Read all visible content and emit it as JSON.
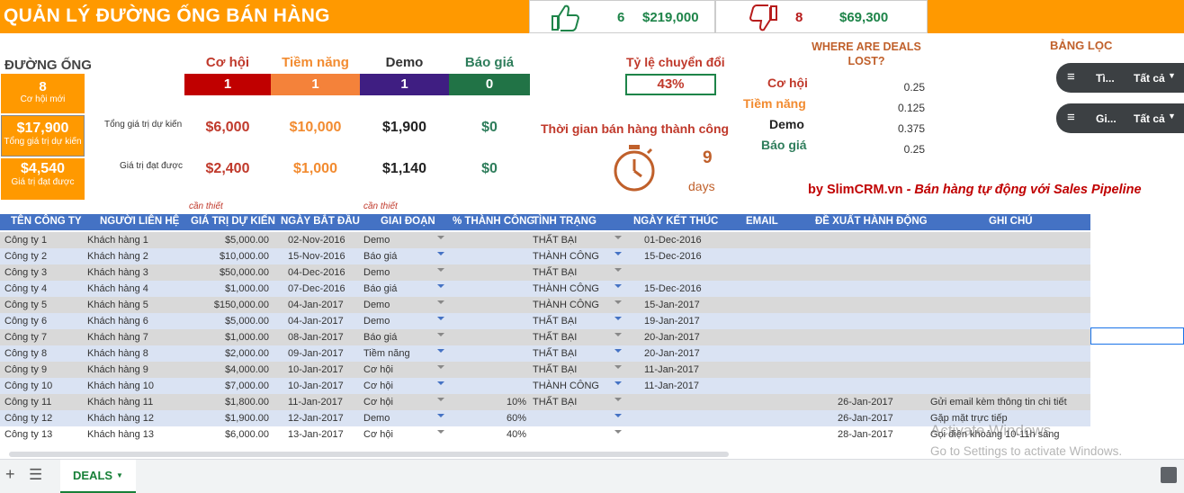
{
  "header": {
    "title": "QUẢN LÝ ĐƯỜNG ỐNG BÁN HÀNG",
    "won_count": "6",
    "won_value": "$219,000",
    "lost_count": "8",
    "lost_value": "$69,300"
  },
  "pipeline": {
    "title": "ĐƯỜNG ỐNG",
    "new_count": "8",
    "new_label": "Cơ hội mới",
    "total_value": "$17,900",
    "total_label": "Tổng giá trị dự kiến",
    "achieved_value": "$4,540",
    "achieved_label": "Giá trị đạt được"
  },
  "stages": [
    {
      "name": "Cơ hội",
      "count": "1",
      "expected": "$6,000",
      "achieved": "$2,400",
      "color": "#c00000"
    },
    {
      "name": "Tiềm năng",
      "count": "1",
      "expected": "$10,000",
      "achieved": "$1,000",
      "color": "#f4823a"
    },
    {
      "name": "Demo",
      "count": "1",
      "expected": "$1,900",
      "achieved": "$1,140",
      "color": "#3f1e82"
    },
    {
      "name": "Báo giá",
      "count": "0",
      "expected": "$0",
      "achieved": "$0",
      "color": "#217346"
    }
  ],
  "row_labels": {
    "expected": "Tổng giá trị dự kiến",
    "achieved": "Giá trị đạt được"
  },
  "conversion": {
    "label": "Tỷ lệ chuyển đổi",
    "value": "43%"
  },
  "cycle": {
    "label": "Thời gian bán hàng thành công",
    "value": "9",
    "unit": "days"
  },
  "lost": {
    "title": "WHERE ARE DEALS LOST?",
    "rows": [
      {
        "stage": "Cơ hội",
        "value": "0.25"
      },
      {
        "stage": "Tiềm năng",
        "value": "0.125"
      },
      {
        "stage": "Demo",
        "value": "0.375"
      },
      {
        "stage": "Báo giá",
        "value": "0.25"
      }
    ]
  },
  "filters": {
    "title": "BẢNG LỌC",
    "items": [
      {
        "label": "Tì...",
        "value": "Tất cả"
      },
      {
        "label": "Gi...",
        "value": "Tất cả"
      }
    ]
  },
  "brand": {
    "name": "by SlimCRM.vn",
    "tagline": "- Bán hàng tự động với Sales Pipeline"
  },
  "notes": {
    "required1": "cần thiết",
    "required2": "cần thiết"
  },
  "table": {
    "columns": [
      "TÊN CÔNG TY",
      "NGƯỜI LIÊN HỆ",
      "GIÁ TRỊ DỰ KIẾN",
      "NGÀY BẮT ĐẦU",
      "GIAI ĐOẠN",
      "% THÀNH CÔNG",
      "TÌNH TRẠNG",
      "NGÀY KẾT THÚC",
      "EMAIL",
      "ĐỀ XUẤT HÀNH ĐỘNG",
      "GHI CHÚ"
    ],
    "rows": [
      [
        "Công ty  1",
        "Khách hàng 1",
        "$5,000.00",
        "02-Nov-2016",
        "Demo",
        "",
        "THẤT BẠI",
        "01-Dec-2016",
        "",
        "",
        ""
      ],
      [
        "Công ty  2",
        "Khách hàng 2",
        "$10,000.00",
        "15-Nov-2016",
        "Báo giá",
        "",
        "THÀNH CÔNG",
        "15-Dec-2016",
        "",
        "",
        ""
      ],
      [
        "Công ty  3",
        "Khách hàng 3",
        "$50,000.00",
        "04-Dec-2016",
        "Demo",
        "",
        "THẤT BẠI",
        "",
        "",
        "",
        ""
      ],
      [
        "Công ty  4",
        "Khách hàng 4",
        "$1,000.00",
        "07-Dec-2016",
        "Báo giá",
        "",
        "THÀNH CÔNG",
        "15-Dec-2016",
        "",
        "",
        ""
      ],
      [
        "Công ty  5",
        "Khách hàng 5",
        "$150,000.00",
        "04-Jan-2017",
        "Demo",
        "",
        "THÀNH CÔNG",
        "15-Jan-2017",
        "",
        "",
        ""
      ],
      [
        "Công ty  6",
        "Khách hàng 6",
        "$5,000.00",
        "04-Jan-2017",
        "Demo",
        "",
        "THẤT BẠI",
        "19-Jan-2017",
        "",
        "",
        ""
      ],
      [
        "Công ty  7",
        "Khách hàng 7",
        "$1,000.00",
        "08-Jan-2017",
        "Báo giá",
        "",
        "THẤT BẠI",
        "20-Jan-2017",
        "",
        "",
        ""
      ],
      [
        "Công ty  8",
        "Khách hàng 8",
        "$2,000.00",
        "09-Jan-2017",
        "Tiềm năng",
        "",
        "THẤT BẠI",
        "20-Jan-2017",
        "",
        "",
        ""
      ],
      [
        "Công ty  9",
        "Khách hàng 9",
        "$4,000.00",
        "10-Jan-2017",
        "Cơ hội",
        "",
        "THẤT BẠI",
        "11-Jan-2017",
        "",
        "",
        ""
      ],
      [
        "Công ty  10",
        "Khách hàng 10",
        "$7,000.00",
        "10-Jan-2017",
        "Cơ hội",
        "",
        "THÀNH CÔNG",
        "11-Jan-2017",
        "",
        "",
        ""
      ],
      [
        "Công ty  11",
        "Khách hàng 11",
        "$1,800.00",
        "11-Jan-2017",
        "Cơ hội",
        "10%",
        "THẤT BẠI",
        "",
        "",
        "26-Jan-2017",
        "Gửi email kèm thông tin chi tiết"
      ],
      [
        "Công ty  12",
        "Khách hàng 12",
        "$1,900.00",
        "12-Jan-2017",
        "Demo",
        "60%",
        "",
        "",
        "",
        "26-Jan-2017",
        "Gặp mặt trực tiếp"
      ],
      [
        "Công ty  13",
        "Khách hàng 13",
        "$6,000.00",
        "13-Jan-2017",
        "Cơ hội",
        "40%",
        "",
        "",
        "",
        "28-Jan-2017",
        "Gọi điện khoảng 10-11h sáng"
      ]
    ]
  },
  "sheet_tab": {
    "label": "DEALS"
  },
  "watermark": {
    "line1": "Activate Windows",
    "line2": "Go to Settings to activate Windows."
  }
}
